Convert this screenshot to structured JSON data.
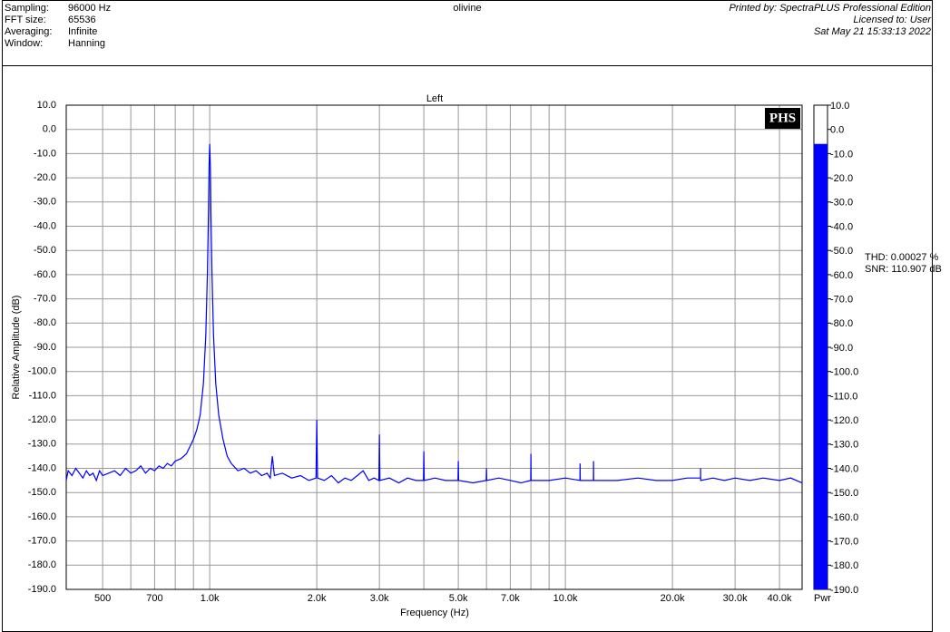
{
  "header": {
    "info": [
      {
        "label": "Sampling:",
        "value": "96000 Hz"
      },
      {
        "label": "FFT size:",
        "value": "65536"
      },
      {
        "label": "Averaging:",
        "value": "Infinite"
      },
      {
        "label": "Window:",
        "value": "Hanning"
      }
    ],
    "center": "olivine",
    "right": [
      "Printed by: SpectraPLUS Professional Edition",
      "Licensed to: User",
      "Sat May 21 15:33:13 2022"
    ]
  },
  "logo": "PHS",
  "measurements": [
    "THD: 0.00027 %",
    "SNR: 110.907 dB"
  ],
  "chart_data": {
    "type": "line",
    "title": "Left",
    "x_label": "Frequency (Hz)",
    "y_label": "Relative Amplitude (dB)",
    "log_x": true,
    "grid": true,
    "xlim": [
      395,
      46300
    ],
    "ylim": [
      -190,
      10
    ],
    "xticks": [
      500,
      700,
      {
        "value": 1000,
        "label": "1.0k"
      },
      {
        "value": 2000,
        "label": "2.0k"
      },
      {
        "value": 3000,
        "label": "3.0k"
      },
      {
        "value": 5000,
        "label": "5.0k"
      },
      {
        "value": 7000,
        "label": "7.0k"
      },
      {
        "value": 10000,
        "label": "10.0k"
      },
      {
        "value": 20000,
        "label": "20.0k"
      },
      {
        "value": 30000,
        "label": "30.0k"
      },
      {
        "value": 40000,
        "label": "40.0k"
      }
    ],
    "xgrid_minor": [
      600,
      800,
      900,
      4000,
      6000,
      8000,
      9000
    ],
    "yticks": [
      {
        "value": 10,
        "label": "10.0"
      },
      {
        "value": 0,
        "label": "0.0"
      },
      {
        "value": -10,
        "label": "-10.0"
      },
      {
        "value": -20,
        "label": "-20.0"
      },
      {
        "value": -30,
        "label": "-30.0"
      },
      {
        "value": -40,
        "label": "-40.0"
      },
      {
        "value": -50,
        "label": "-50.0"
      },
      {
        "value": -60,
        "label": "-60.0"
      },
      {
        "value": -70,
        "label": "-70.0"
      },
      {
        "value": -80,
        "label": "-80.0"
      },
      {
        "value": -90,
        "label": "-90.0"
      },
      {
        "value": -100,
        "label": "-100.0"
      },
      {
        "value": -110,
        "label": "-110.0"
      },
      {
        "value": -120,
        "label": "-120.0"
      },
      {
        "value": -130,
        "label": "-130.0"
      },
      {
        "value": -140,
        "label": "-140.0"
      },
      {
        "value": -150,
        "label": "-150.0"
      },
      {
        "value": -160,
        "label": "-160.0"
      },
      {
        "value": -170,
        "label": "-170.0"
      },
      {
        "value": -180,
        "label": "-180.0"
      },
      {
        "value": -190,
        "label": "-190.0"
      }
    ],
    "meter": {
      "label": "Pwr",
      "value": -6,
      "color": "#0000ff"
    },
    "series": [
      {
        "name": "Left",
        "color": "#0000ff",
        "x": [
          395,
          400,
          410,
          420,
          430,
          440,
          450,
          460,
          470,
          480,
          490,
          500,
          520,
          540,
          560,
          580,
          600,
          620,
          640,
          660,
          680,
          700,
          720,
          740,
          760,
          780,
          800,
          830,
          860,
          880,
          900,
          920,
          940,
          960,
          975,
          985,
          992,
          996,
          1000,
          1004,
          1008,
          1015,
          1025,
          1040,
          1060,
          1090,
          1120,
          1150,
          1200,
          1250,
          1300,
          1350,
          1400,
          1450,
          1480,
          1500,
          1520,
          1600,
          1700,
          1800,
          1900,
          1990,
          2000,
          2010,
          2100,
          2200,
          2300,
          2400,
          2500,
          2600,
          2700,
          2800,
          2900,
          2990,
          3000,
          3010,
          3200,
          3400,
          3600,
          3800,
          3990,
          4000,
          4010,
          4300,
          4600,
          4990,
          5000,
          5010,
          5500,
          5990,
          6000,
          6010,
          6500,
          7000,
          7500,
          7990,
          8000,
          8010,
          9000,
          10000,
          10990,
          11000,
          11010,
          11990,
          12000,
          12010,
          14000,
          16000,
          18000,
          20000,
          22000,
          23990,
          24000,
          24010,
          26000,
          28000,
          30000,
          33000,
          36000,
          40000,
          43000,
          46300
        ],
        "values": [
          -145,
          -141,
          -143,
          -140,
          -142,
          -144,
          -141,
          -143,
          -142,
          -145,
          -141,
          -143,
          -142,
          -141,
          -143,
          -140,
          -142,
          -141,
          -139,
          -142,
          -140,
          -141,
          -139,
          -140,
          -138,
          -139,
          -137,
          -136,
          -134,
          -131,
          -128,
          -124,
          -118,
          -105,
          -85,
          -60,
          -35,
          -15,
          -6,
          -15,
          -35,
          -60,
          -85,
          -105,
          -118,
          -128,
          -135,
          -138,
          -141,
          -140,
          -142,
          -141,
          -143,
          -142,
          -144,
          -135,
          -143,
          -142,
          -144,
          -143,
          -145,
          -144,
          -120,
          -144,
          -145,
          -143,
          -146,
          -144,
          -145,
          -143,
          -141,
          -145,
          -144,
          -145,
          -126,
          -145,
          -144,
          -146,
          -144,
          -145,
          -145,
          -133,
          -145,
          -144,
          -145,
          -145,
          -137,
          -145,
          -146,
          -145,
          -140,
          -145,
          -144,
          -145,
          -146,
          -145,
          -134,
          -145,
          -145,
          -144,
          -145,
          -138,
          -145,
          -145,
          -137,
          -145,
          -145,
          -144,
          -145,
          -145,
          -144,
          -144,
          -140,
          -145,
          -144,
          -145,
          -144,
          -145,
          -144,
          -145,
          -144,
          -146
        ]
      }
    ]
  }
}
